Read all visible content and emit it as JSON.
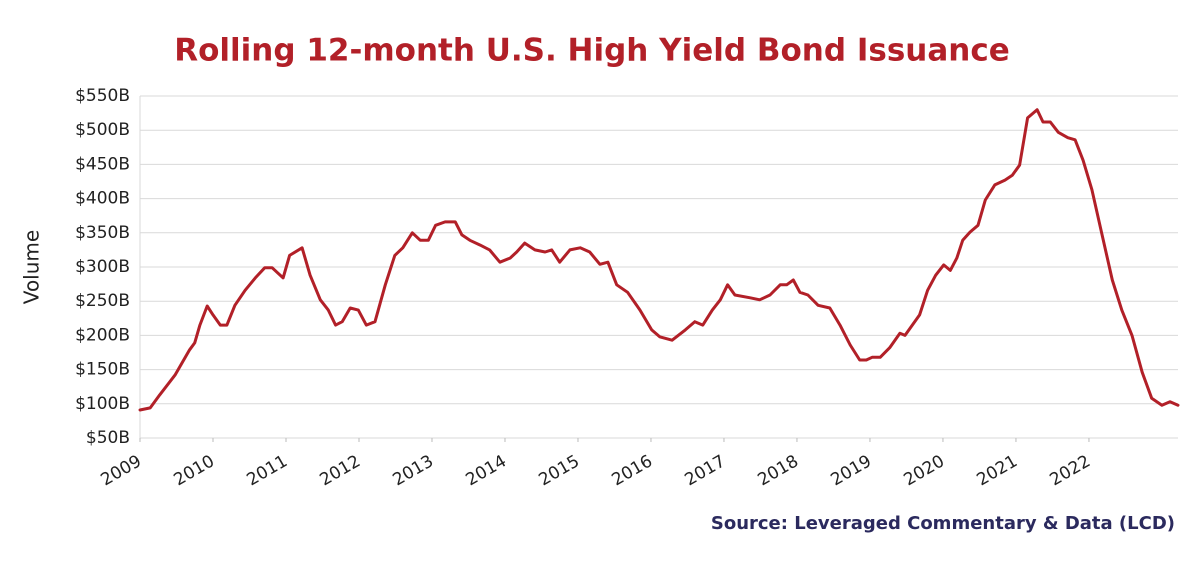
{
  "chart_data": {
    "type": "line",
    "title": "Rolling 12-month U.S. High Yield Bond Issuance",
    "y_label": "Volume",
    "source": "Source: Leveraged Commentary & Data (LCD)",
    "x": [
      2009.0,
      2009.14,
      2009.27,
      2009.48,
      2009.68,
      2009.75,
      2009.82,
      2009.92,
      2010.0,
      2010.1,
      2010.19,
      2010.3,
      2010.44,
      2010.58,
      2010.71,
      2010.81,
      2010.89,
      2010.96,
      2011.05,
      2011.22,
      2011.33,
      2011.47,
      2011.58,
      2011.68,
      2011.77,
      2011.88,
      2011.99,
      2012.1,
      2012.22,
      2012.36,
      2012.49,
      2012.6,
      2012.73,
      2012.84,
      2012.95,
      2013.05,
      2013.18,
      2013.32,
      2013.41,
      2013.52,
      2013.66,
      2013.79,
      2013.93,
      2014.07,
      2014.16,
      2014.27,
      2014.41,
      2014.55,
      2014.64,
      2014.75,
      2014.89,
      2015.03,
      2015.16,
      2015.3,
      2015.41,
      2015.53,
      2015.68,
      2015.85,
      2016.01,
      2016.12,
      2016.29,
      2016.47,
      2016.6,
      2016.71,
      2016.84,
      2016.95,
      2017.05,
      2017.15,
      2017.36,
      2017.49,
      2017.63,
      2017.77,
      2017.86,
      2017.95,
      2018.04,
      2018.15,
      2018.29,
      2018.45,
      2018.59,
      2018.73,
      2018.86,
      2018.95,
      2019.03,
      2019.14,
      2019.27,
      2019.41,
      2019.48,
      2019.58,
      2019.68,
      2019.79,
      2019.9,
      2020.01,
      2020.1,
      2020.19,
      2020.27,
      2020.37,
      2020.48,
      2020.58,
      2020.71,
      2020.85,
      2020.95,
      2021.05,
      2021.16,
      2021.29,
      2021.37,
      2021.47,
      2021.58,
      2021.71,
      2021.81,
      2021.92,
      2022.04,
      2022.18,
      2022.32,
      2022.45,
      2022.59,
      2022.73,
      2022.86,
      2023.0,
      2023.11,
      2023.22
    ],
    "series": [
      {
        "name": "Rolling 12-month issuance",
        "color": "#b22028",
        "values": [
          91,
          94,
          113,
          142,
          179,
          189,
          215,
          243,
          230,
          215,
          215,
          244,
          266,
          284,
          299,
          299,
          291,
          284,
          317,
          328,
          288,
          252,
          237,
          215,
          220,
          240,
          237,
          215,
          220,
          274,
          317,
          328,
          350,
          339,
          339,
          361,
          366,
          366,
          347,
          339,
          332,
          325,
          307,
          313,
          322,
          335,
          325,
          322,
          325,
          307,
          325,
          328,
          322,
          304,
          307,
          274,
          263,
          237,
          208,
          198,
          193,
          208,
          220,
          215,
          237,
          252,
          274,
          259,
          255,
          252,
          259,
          274,
          274,
          281,
          263,
          259,
          244,
          240,
          215,
          186,
          164,
          164,
          168,
          168,
          182,
          203,
          200,
          215,
          230,
          266,
          288,
          303,
          295,
          313,
          339,
          351,
          361,
          398,
          420,
          427,
          434,
          449,
          518,
          530,
          512,
          512,
          497,
          489,
          486,
          456,
          413,
          347,
          281,
          237,
          200,
          146,
          108,
          98,
          103,
          98
        ]
      }
    ],
    "xlim": [
      2009,
      2023.22
    ],
    "xticks": [
      2009,
      2010,
      2011,
      2012,
      2013,
      2014,
      2015,
      2016,
      2017,
      2018,
      2019,
      2020,
      2021,
      2022
    ],
    "ylim": [
      50,
      550
    ],
    "yticks": [
      {
        "value": 50,
        "label": "$50B"
      },
      {
        "value": 100,
        "label": "$100B"
      },
      {
        "value": 150,
        "label": "$150B"
      },
      {
        "value": 200,
        "label": "$200B"
      },
      {
        "value": 250,
        "label": "$250B"
      },
      {
        "value": 300,
        "label": "$300B"
      },
      {
        "value": 350,
        "label": "$350B"
      },
      {
        "value": 400,
        "label": "$400B"
      },
      {
        "value": 450,
        "label": "$450B"
      },
      {
        "value": 500,
        "label": "$500B"
      },
      {
        "value": 550,
        "label": "$550B"
      }
    ],
    "grid": true
  }
}
